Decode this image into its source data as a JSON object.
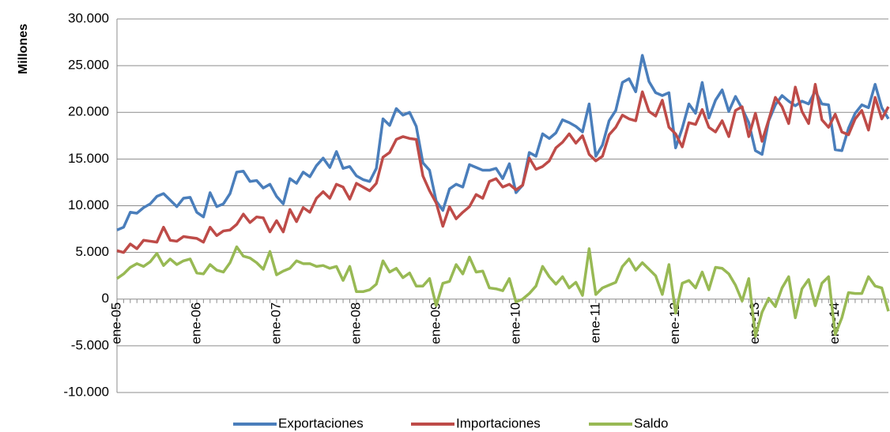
{
  "chart_data": {
    "type": "line",
    "y_label": "Millones",
    "categories": [
      "ene-05",
      null,
      null,
      null,
      null,
      null,
      null,
      null,
      null,
      null,
      null,
      null,
      "ene-06",
      null,
      null,
      null,
      null,
      null,
      null,
      null,
      null,
      null,
      null,
      null,
      "ene-07",
      null,
      null,
      null,
      null,
      null,
      null,
      null,
      null,
      null,
      null,
      null,
      "ene-08",
      null,
      null,
      null,
      null,
      null,
      null,
      null,
      null,
      null,
      null,
      null,
      "ene-09",
      null,
      null,
      null,
      null,
      null,
      null,
      null,
      null,
      null,
      null,
      null,
      "ene-10",
      null,
      null,
      null,
      null,
      null,
      null,
      null,
      null,
      null,
      null,
      null,
      "ene-11",
      null,
      null,
      null,
      null,
      null,
      null,
      null,
      null,
      null,
      null,
      null,
      "ene-12",
      null,
      null,
      null,
      null,
      null,
      null,
      null,
      null,
      null,
      null,
      null,
      "ene-13",
      null,
      null,
      null,
      null,
      null,
      null,
      null,
      null,
      null,
      null,
      null,
      "ene-14",
      null,
      null,
      null,
      null,
      null,
      null,
      null,
      null
    ],
    "series": [
      {
        "name": "Exportaciones",
        "color": "#4a7ebb",
        "values": [
          7400,
          7700,
          9300,
          9200,
          9800,
          10200,
          11000,
          11300,
          10600,
          9900,
          10800,
          10900,
          9300,
          8800,
          11400,
          9900,
          10200,
          11300,
          13600,
          13700,
          12600,
          12700,
          11900,
          12300,
          11000,
          10200,
          12900,
          12400,
          13600,
          13100,
          14300,
          15100,
          14100,
          15800,
          14000,
          14200,
          13200,
          12800,
          12600,
          14000,
          19300,
          18600,
          20400,
          19700,
          20000,
          18500,
          14600,
          13800,
          10500,
          9500,
          11800,
          12300,
          12000,
          14400,
          14100,
          13800,
          13800,
          14000,
          12900,
          14500,
          11400,
          12200,
          15700,
          15300,
          17700,
          17200,
          17800,
          19200,
          18900,
          18500,
          17900,
          20900,
          15300,
          16500,
          19100,
          20200,
          23200,
          23600,
          22200,
          26100,
          23300,
          22100,
          21800,
          22100,
          16200,
          18300,
          20900,
          19900,
          23200,
          19400,
          21300,
          22400,
          20100,
          21700,
          20400,
          18900,
          15900,
          15500,
          19100,
          20800,
          21800,
          21200,
          20700,
          21200,
          20900,
          22300,
          20900,
          20800,
          16000,
          15900,
          18300,
          19900,
          20800,
          20500,
          23000,
          20500,
          19300
        ]
      },
      {
        "name": "Importaciones",
        "color": "#be4b48",
        "values": [
          5200,
          5000,
          5900,
          5400,
          6300,
          6200,
          6100,
          7700,
          6300,
          6200,
          6700,
          6600,
          6500,
          6100,
          7700,
          6800,
          7300,
          7400,
          8000,
          9100,
          8200,
          8800,
          8700,
          7200,
          8400,
          7200,
          9600,
          8300,
          9800,
          9300,
          10800,
          11500,
          10800,
          12300,
          12000,
          10700,
          12400,
          12000,
          11600,
          12400,
          15200,
          15700,
          17100,
          17400,
          17200,
          17100,
          13200,
          11600,
          10300,
          7800,
          9900,
          8600,
          9300,
          9900,
          11200,
          10800,
          12600,
          12900,
          12000,
          12300,
          11700,
          12200,
          15100,
          13900,
          14200,
          14800,
          16200,
          16800,
          17700,
          16700,
          17500,
          15500,
          14800,
          15300,
          17600,
          18400,
          19700,
          19300,
          19100,
          22200,
          20100,
          19600,
          21300,
          18400,
          17700,
          16300,
          18900,
          18700,
          20300,
          18400,
          17900,
          19100,
          17400,
          20200,
          20600,
          17400,
          19900,
          16900,
          19200,
          21600,
          20600,
          18800,
          22700,
          20100,
          18800,
          23000,
          19200,
          18400,
          19800,
          17900,
          17600,
          19300,
          20200,
          18100,
          21600,
          19300,
          20600
        ]
      },
      {
        "name": "Saldo",
        "color": "#98b954",
        "values": [
          2200,
          2700,
          3400,
          3800,
          3500,
          4000,
          4900,
          3600,
          4300,
          3700,
          4100,
          4300,
          2800,
          2700,
          3700,
          3100,
          2900,
          3900,
          5600,
          4600,
          4400,
          3900,
          3200,
          5100,
          2600,
          3000,
          3300,
          4100,
          3800,
          3800,
          3500,
          3600,
          3300,
          3500,
          2000,
          3500,
          800,
          800,
          1000,
          1600,
          4100,
          2900,
          3300,
          2300,
          2800,
          1400,
          1400,
          2200,
          -700,
          1700,
          1900,
          3700,
          2700,
          4500,
          2900,
          3000,
          1200,
          1100,
          900,
          2200,
          -300,
          0,
          600,
          1400,
          3500,
          2400,
          1600,
          2400,
          1200,
          1800,
          400,
          5400,
          500,
          1200,
          1500,
          1800,
          3500,
          4300,
          3100,
          3900,
          3200,
          2500,
          500,
          3700,
          -1500,
          1700,
          2000,
          1200,
          2900,
          1000,
          3400,
          3300,
          2700,
          1500,
          -200,
          2200,
          -4000,
          -1400,
          100,
          -800,
          1200,
          2400,
          -2000,
          1100,
          2100,
          -700,
          1700,
          2400,
          -3800,
          -2000,
          700,
          600,
          600,
          2400,
          1400,
          1200,
          -1300
        ]
      }
    ],
    "ylim": [
      -10000,
      30000
    ],
    "yticks": [
      {
        "value": -10000,
        "label": "-10.000"
      },
      {
        "value": -5000,
        "label": "-5.000"
      },
      0,
      {
        "value": 5000,
        "label": "5.000"
      },
      {
        "value": 10000,
        "label": "10.000"
      },
      {
        "value": 15000,
        "label": "15.000"
      },
      {
        "value": 20000,
        "label": "20.000"
      },
      {
        "value": 25000,
        "label": "25.000"
      },
      {
        "value": 30000,
        "label": "30.000"
      }
    ],
    "grid": true,
    "legend": "bottom"
  }
}
